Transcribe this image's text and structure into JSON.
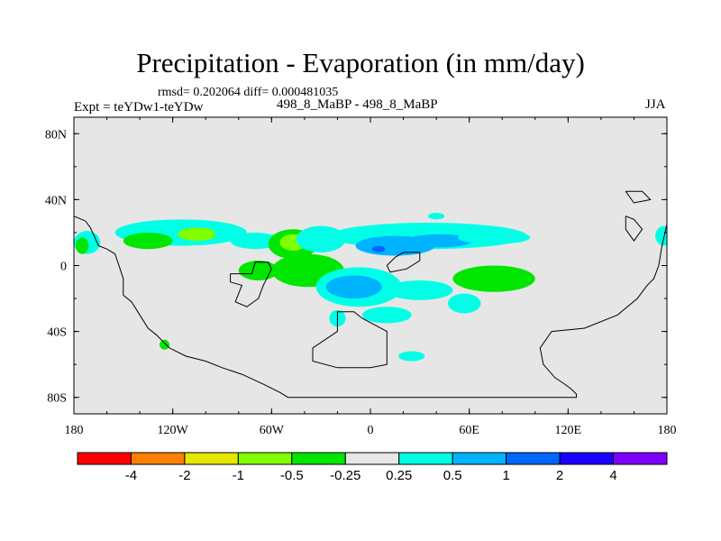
{
  "chart_data": {
    "type": "heatmap",
    "title": "Precipitation - Evaporation (in mm/day)",
    "stats_text": "rmsd= 0.202064  diff= 0.000481035",
    "experiment_text": "Expt = teYDw1-teYDw",
    "subtitle": "498_8_MaBP - 498_8_MaBP",
    "season": "JJA",
    "projection": "cylindrical equidistant",
    "xlim": [
      -180,
      180
    ],
    "ylim": [
      -90,
      90
    ],
    "x_ticks": [
      {
        "value": -180,
        "label": "180"
      },
      {
        "value": -120,
        "label": "120W"
      },
      {
        "value": -60,
        "label": "60W"
      },
      {
        "value": 0,
        "label": "0"
      },
      {
        "value": 60,
        "label": "60E"
      },
      {
        "value": 120,
        "label": "120E"
      },
      {
        "value": 180,
        "label": "180"
      }
    ],
    "y_ticks": [
      {
        "value": 80,
        "label": "80N"
      },
      {
        "value": 40,
        "label": "40N"
      },
      {
        "value": 0,
        "label": "0"
      },
      {
        "value": -40,
        "label": "40S"
      },
      {
        "value": -80,
        "label": "80S"
      }
    ],
    "background_color": "#e6e6e6",
    "colorbar": {
      "colors": [
        "#ff0000",
        "#ff8000",
        "#e6e600",
        "#80ff00",
        "#00e600",
        "#e6e6e6",
        "#00ffe6",
        "#00b3ff",
        "#0066ff",
        "#1a00ff",
        "#8000ff"
      ],
      "labels": [
        "-4",
        "-2",
        "-1",
        "-0.5",
        "-0.25",
        "0.25",
        "0.5",
        "1",
        "2",
        "4"
      ]
    },
    "anomaly_regions": [
      {
        "level": 0.5,
        "color": "#00ffe6",
        "lon": -115,
        "lat": 20,
        "rlon": 40,
        "rlat": 8
      },
      {
        "level": 0.5,
        "color": "#00ffe6",
        "lon": -172,
        "lat": 14,
        "rlon": 8,
        "rlat": 7
      },
      {
        "level": -0.25,
        "color": "#00e600",
        "lon": -135,
        "lat": 15,
        "rlon": 15,
        "rlat": 5
      },
      {
        "level": -0.5,
        "color": "#80ff00",
        "lon": -105,
        "lat": 19,
        "rlon": 12,
        "rlat": 4
      },
      {
        "level": 0.5,
        "color": "#00ffe6",
        "lon": -70,
        "lat": 15,
        "rlon": 15,
        "rlat": 5
      },
      {
        "level": -0.25,
        "color": "#00e600",
        "lon": -68,
        "lat": -3,
        "rlon": 12,
        "rlat": 6
      },
      {
        "level": -0.25,
        "color": "#00e600",
        "lon": -38,
        "lat": -3,
        "rlon": 22,
        "rlat": 10
      },
      {
        "level": -0.25,
        "color": "#00e600",
        "lon": -47,
        "lat": 13,
        "rlon": 15,
        "rlat": 9
      },
      {
        "level": -0.5,
        "color": "#80ff00",
        "lon": -47,
        "lat": 14,
        "rlon": 8,
        "rlat": 5
      },
      {
        "level": 0.5,
        "color": "#00ffe6",
        "lon": -30,
        "lat": 16,
        "rlon": 15,
        "rlat": 8
      },
      {
        "level": 0.5,
        "color": "#00ffe6",
        "lon": 35,
        "lat": 18,
        "rlon": 60,
        "rlat": 8
      },
      {
        "level": 1,
        "color": "#00b3ff",
        "lon": 15,
        "lat": 12,
        "rlon": 24,
        "rlat": 6
      },
      {
        "level": 1,
        "color": "#00b3ff",
        "lon": 42,
        "lat": 15,
        "rlon": 20,
        "rlat": 4
      },
      {
        "level": 2,
        "color": "#0066ff",
        "lon": 5,
        "lat": 10,
        "rlon": 4,
        "rlat": 2
      },
      {
        "level": 0.5,
        "color": "#00ffe6",
        "lon": 75,
        "lat": 17,
        "rlon": 22,
        "rlat": 4
      },
      {
        "level": -0.25,
        "color": "#00e600",
        "lon": 75,
        "lat": -8,
        "rlon": 25,
        "rlat": 8
      },
      {
        "level": 0.5,
        "color": "#00ffe6",
        "lon": -7,
        "lat": -13,
        "rlon": 26,
        "rlat": 12
      },
      {
        "level": 1,
        "color": "#00b3ff",
        "lon": -10,
        "lat": -13,
        "rlon": 17,
        "rlat": 7
      },
      {
        "level": 0.5,
        "color": "#00ffe6",
        "lon": 30,
        "lat": -15,
        "rlon": 20,
        "rlat": 6
      },
      {
        "level": 0.5,
        "color": "#00ffe6",
        "lon": 57,
        "lat": -23,
        "rlon": 10,
        "rlat": 6
      },
      {
        "level": 0.5,
        "color": "#00ffe6",
        "lon": 10,
        "lat": -30,
        "rlon": 15,
        "rlat": 5
      },
      {
        "level": 0.5,
        "color": "#00ffe6",
        "lon": -20,
        "lat": -32,
        "rlon": 5,
        "rlat": 5
      },
      {
        "level": 0.5,
        "color": "#00ffe6",
        "lon": 25,
        "lat": -55,
        "rlon": 8,
        "rlat": 3
      },
      {
        "level": -0.25,
        "color": "#00e600",
        "lon": -125,
        "lat": -48,
        "rlon": 3,
        "rlat": 3
      },
      {
        "level": -0.25,
        "color": "#00e600",
        "lon": -175,
        "lat": 12,
        "rlon": 4,
        "rlat": 5
      },
      {
        "level": 0.5,
        "color": "#00ffe6",
        "lon": 178,
        "lat": 18,
        "rlon": 5,
        "rlat": 6
      },
      {
        "level": 0.5,
        "color": "#00ffe6",
        "lon": 40,
        "lat": 30,
        "rlon": 5,
        "rlat": 2
      },
      {
        "level": 0.5,
        "color": "#00ffe6",
        "lon": -90,
        "lat": 20,
        "rlon": 5,
        "rlat": 3
      }
    ],
    "coastlines": [
      [
        [
          -180,
          30
        ],
        [
          -173,
          27
        ],
        [
          -170,
          23
        ],
        [
          -165,
          12
        ],
        [
          -160,
          10
        ],
        [
          -155,
          7
        ],
        [
          -152,
          -2
        ],
        [
          -150,
          -8
        ],
        [
          -150,
          -18
        ],
        [
          -145,
          -22
        ],
        [
          -140,
          -30
        ],
        [
          -135,
          -38
        ],
        [
          -130,
          -42
        ],
        [
          -122,
          -50
        ],
        [
          -112,
          -55
        ],
        [
          -100,
          -58
        ],
        [
          -90,
          -62
        ],
        [
          -78,
          -66
        ],
        [
          -65,
          -72
        ],
        [
          -55,
          -77
        ],
        [
          -50,
          -80
        ],
        [
          0,
          -80
        ],
        [
          125,
          -80
        ],
        [
          125,
          -78
        ],
        [
          122,
          -75
        ],
        [
          118,
          -72
        ],
        [
          112,
          -68
        ],
        [
          105,
          -60
        ],
        [
          103,
          -50
        ],
        [
          110,
          -40
        ],
        [
          130,
          -38
        ],
        [
          150,
          -30
        ],
        [
          162,
          -20
        ],
        [
          168,
          -12
        ],
        [
          172,
          -8
        ],
        [
          175,
          0
        ],
        [
          177,
          12
        ],
        [
          180,
          25
        ]
      ],
      [
        [
          -85,
          -5
        ],
        [
          -72,
          -5
        ],
        [
          -70,
          2
        ],
        [
          -62,
          2
        ],
        [
          -60,
          -2
        ],
        [
          -65,
          -12
        ],
        [
          -68,
          -20
        ],
        [
          -75,
          -25
        ],
        [
          -82,
          -22
        ],
        [
          -78,
          -12
        ],
        [
          -85,
          -10
        ],
        [
          -85,
          -5
        ]
      ],
      [
        [
          10,
          0
        ],
        [
          15,
          5
        ],
        [
          20,
          8
        ],
        [
          30,
          8
        ],
        [
          30,
          3
        ],
        [
          22,
          -2
        ],
        [
          12,
          -4
        ],
        [
          10,
          0
        ]
      ],
      [
        [
          -35,
          -50
        ],
        [
          -20,
          -40
        ],
        [
          -20,
          -28
        ],
        [
          -10,
          -28
        ],
        [
          -5,
          -32
        ],
        [
          10,
          -40
        ],
        [
          10,
          -60
        ],
        [
          0,
          -62
        ],
        [
          -20,
          -62
        ],
        [
          -35,
          -58
        ],
        [
          -35,
          -50
        ]
      ],
      [
        [
          155,
          30
        ],
        [
          160,
          28
        ],
        [
          165,
          22
        ],
        [
          160,
          15
        ],
        [
          155,
          22
        ],
        [
          155,
          30
        ]
      ],
      [
        [
          155,
          45
        ],
        [
          165,
          45
        ],
        [
          170,
          40
        ],
        [
          160,
          38
        ],
        [
          155,
          45
        ]
      ]
    ]
  }
}
